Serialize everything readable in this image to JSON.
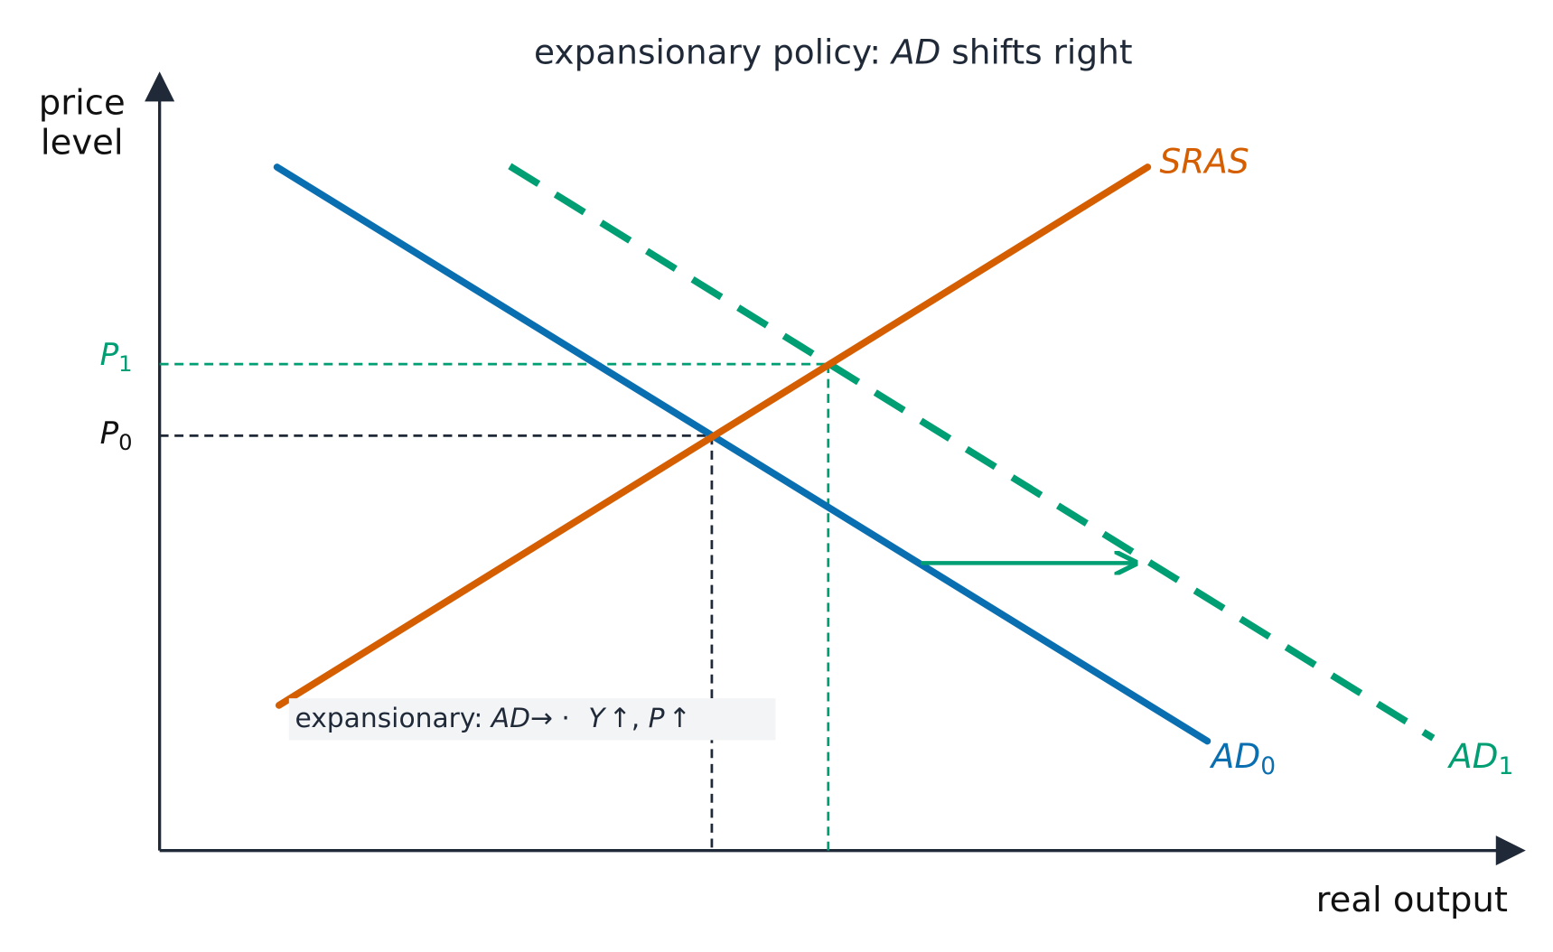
{
  "title": {
    "before": "expansionary policy: ",
    "italic": "AD",
    "after": " shifts right"
  },
  "y_axis_label": [
    "price",
    "level"
  ],
  "x_axis_label": "real output",
  "curves": {
    "sras": {
      "label": "SRAS"
    },
    "ad0": {
      "label": "AD",
      "subscript": "0"
    },
    "ad1": {
      "label": "AD",
      "subscript": "1"
    }
  },
  "price_levels": {
    "p0": {
      "label": "P",
      "subscript": "0"
    },
    "p1": {
      "label": "P",
      "subscript": "1"
    }
  },
  "annotation": {
    "lead": "expansionary: ",
    "ad": "AD",
    "arrow": "→",
    "dot": " · ",
    "y": "Y",
    "up1": "↑",
    "comma": ", ",
    "p": "P",
    "up2": "↑"
  }
}
